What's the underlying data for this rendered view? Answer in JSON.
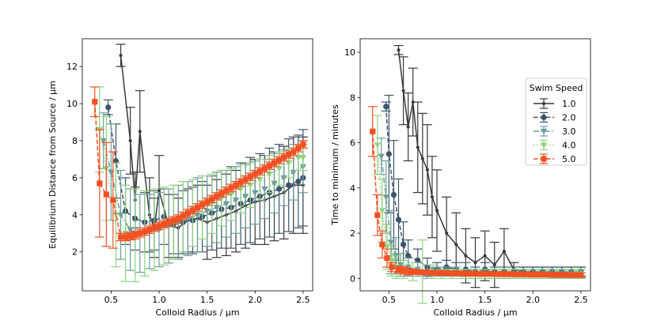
{
  "chart_data": [
    {
      "type": "line",
      "title": "",
      "xlabel": "Colloid Radius / μm",
      "ylabel": "Equilibrium Distance from Source / μm",
      "xlim": [
        0.2,
        2.6
      ],
      "ylim": [
        -0.1,
        13.5
      ],
      "xticks": [
        0.5,
        1.0,
        1.5,
        2.0,
        2.5
      ],
      "xtick_labels": [
        "0.5",
        "1.0",
        "1.5",
        "2.0",
        "2.5"
      ],
      "yticks": [
        2,
        4,
        6,
        8,
        10,
        12
      ],
      "ytick_labels": [
        "2",
        "4",
        "6",
        "8",
        "10",
        "12"
      ],
      "grid": false,
      "legend": false,
      "series": [
        {
          "name": "1.0",
          "color": "#3a3539",
          "marker": "point",
          "linestyle": "solid",
          "x": [
            0.6,
            0.7,
            0.75,
            0.8,
            0.9,
            0.95,
            1.0,
            1.1,
            1.2,
            1.3,
            1.4,
            1.5,
            1.6,
            1.7,
            1.8,
            1.9,
            2.0,
            2.1,
            2.2,
            2.3,
            2.4,
            2.5
          ],
          "y": [
            12.6,
            8.0,
            4.8,
            8.5,
            4.0,
            3.3,
            5.3,
            3.4,
            3.3,
            3.7,
            3.8,
            3.6,
            3.8,
            4.0,
            4.2,
            4.5,
            4.7,
            4.8,
            5.0,
            5.2,
            5.6,
            5.6
          ],
          "err": [
            0.6,
            1.8,
            1.5,
            2.2,
            2.0,
            1.6,
            1.9,
            1.7,
            1.6,
            1.7,
            1.8,
            2.0,
            2.1,
            2.2,
            2.2,
            2.3,
            2.3,
            2.4,
            2.4,
            2.5,
            2.6,
            2.6
          ]
        },
        {
          "name": "2.0",
          "color": "#3c556b",
          "marker": "circle",
          "linestyle": "dashed",
          "x": [
            0.47,
            0.55,
            0.65,
            0.75,
            0.85,
            0.95,
            1.05,
            1.15,
            1.25,
            1.35,
            1.45,
            1.55,
            1.65,
            1.75,
            1.85,
            1.95,
            2.05,
            2.15,
            2.25,
            2.35,
            2.45,
            2.5
          ],
          "y": [
            9.8,
            6.9,
            4.2,
            3.8,
            3.6,
            3.7,
            3.9,
            3.5,
            3.6,
            3.7,
            3.9,
            4.1,
            4.3,
            4.4,
            4.6,
            4.8,
            5.0,
            5.2,
            5.4,
            5.6,
            5.8,
            6.0
          ],
          "err": [
            0.4,
            2.0,
            1.8,
            1.7,
            1.6,
            1.6,
            1.5,
            1.6,
            1.7,
            1.8,
            1.9,
            2.0,
            2.1,
            2.2,
            2.2,
            2.3,
            2.3,
            2.4,
            2.4,
            2.5,
            2.5,
            2.6
          ]
        },
        {
          "name": "3.0",
          "color": "#6d9e9b",
          "marker": "triangle-down",
          "linestyle": "dashdot",
          "x": [
            0.42,
            0.5,
            0.6,
            0.7,
            0.8,
            0.9,
            1.0,
            1.1,
            1.2,
            1.3,
            1.4,
            1.5,
            1.6,
            1.7,
            1.8,
            1.9,
            2.0,
            2.1,
            2.2,
            2.3,
            2.4,
            2.5
          ],
          "y": [
            8.0,
            6.3,
            4.0,
            3.2,
            3.0,
            3.1,
            3.2,
            3.4,
            3.6,
            3.8,
            4.0,
            4.2,
            4.4,
            4.6,
            4.8,
            5.0,
            5.2,
            5.4,
            5.7,
            6.0,
            6.3,
            6.6
          ],
          "err": [
            1.5,
            2.6,
            2.4,
            2.2,
            2.1,
            2.0,
            2.0,
            2.0,
            2.0,
            2.0,
            2.0,
            1.9,
            1.9,
            1.8,
            1.8,
            1.7,
            1.7,
            1.6,
            1.6,
            1.5,
            1.5,
            1.4
          ]
        },
        {
          "name": "4.0",
          "color": "#90d47d",
          "marker": "triangle-down",
          "linestyle": "dotted",
          "x": [
            0.38,
            0.45,
            0.55,
            0.65,
            0.75,
            0.85,
            0.95,
            1.05,
            1.15,
            1.25,
            1.35,
            1.45,
            1.55,
            1.65,
            1.75,
            1.85,
            1.95,
            2.05,
            2.15,
            2.25,
            2.35,
            2.45,
            2.5
          ],
          "y": [
            8.6,
            6.5,
            4.0,
            3.0,
            2.9,
            3.0,
            3.2,
            3.4,
            3.6,
            3.9,
            4.1,
            4.4,
            4.6,
            4.9,
            5.1,
            5.4,
            5.6,
            5.9,
            6.2,
            6.5,
            6.8,
            7.1,
            7.1
          ],
          "err": [
            2.3,
            2.8,
            2.8,
            2.6,
            2.5,
            2.3,
            2.2,
            2.1,
            2.0,
            1.9,
            1.8,
            1.7,
            1.6,
            1.5,
            1.4,
            1.3,
            1.2,
            1.1,
            1.0,
            0.9,
            0.8,
            0.7,
            0.7
          ]
        },
        {
          "name": "5.0",
          "color": "#f05023",
          "marker": "square",
          "linestyle": "dashed",
          "x": [
            0.33,
            0.38,
            0.45,
            0.52,
            0.6,
            0.65,
            0.7,
            0.75,
            0.8,
            0.85,
            0.9,
            0.95,
            1.0,
            1.05,
            1.1,
            1.15,
            1.2,
            1.25,
            1.3,
            1.35,
            1.4,
            1.45,
            1.5,
            1.55,
            1.6,
            1.65,
            1.7,
            1.75,
            1.8,
            1.85,
            1.9,
            1.95,
            2.0,
            2.05,
            2.1,
            2.15,
            2.2,
            2.25,
            2.3,
            2.35,
            2.4,
            2.45,
            2.5
          ],
          "y": [
            10.1,
            5.7,
            5.1,
            4.8,
            2.8,
            2.8,
            2.85,
            2.9,
            3.0,
            3.1,
            3.2,
            3.3,
            3.4,
            3.5,
            3.6,
            3.7,
            3.8,
            3.95,
            4.1,
            4.25,
            4.4,
            4.55,
            4.7,
            4.85,
            5.0,
            5.15,
            5.3,
            5.45,
            5.6,
            5.75,
            5.9,
            6.05,
            6.2,
            6.35,
            6.5,
            6.65,
            6.8,
            6.95,
            7.1,
            7.25,
            7.4,
            7.6,
            7.8
          ],
          "err": [
            0.8,
            2.9,
            2.8,
            2.6,
            0.2,
            0.2,
            0.2,
            0.2,
            0.2,
            0.2,
            0.2,
            0.2,
            0.2,
            0.2,
            0.2,
            0.2,
            0.2,
            0.2,
            0.2,
            0.2,
            0.2,
            0.2,
            0.2,
            0.2,
            0.2,
            0.2,
            0.2,
            0.2,
            0.2,
            0.2,
            0.2,
            0.2,
            0.2,
            0.2,
            0.2,
            0.2,
            0.2,
            0.2,
            0.2,
            0.2,
            0.2,
            0.2,
            0.2
          ]
        }
      ]
    },
    {
      "type": "line",
      "title": "",
      "xlabel": "Colloid Radius / μm",
      "ylabel": "Time to minimum / minutes",
      "xlim": [
        0.2,
        2.6
      ],
      "ylim": [
        -0.55,
        10.6
      ],
      "xticks": [
        0.5,
        1.0,
        1.5,
        2.0,
        2.5
      ],
      "xtick_labels": [
        "0.5",
        "1.0",
        "1.5",
        "2.0",
        "2.5"
      ],
      "yticks": [
        0,
        2,
        4,
        6,
        8,
        10
      ],
      "ytick_labels": [
        "0",
        "2",
        "4",
        "6",
        "8",
        "10"
      ],
      "grid": false,
      "legend": true,
      "legend_title": "Swim Speed",
      "legend_loc": "center-right",
      "series": [
        {
          "name": "1.0",
          "color": "#3a3539",
          "marker": "point",
          "linestyle": "solid",
          "x": [
            0.6,
            0.65,
            0.7,
            0.75,
            0.8,
            0.85,
            0.9,
            0.95,
            1.0,
            1.1,
            1.2,
            1.3,
            1.4,
            1.5,
            1.6,
            1.7,
            1.8,
            1.9,
            2.0,
            2.1,
            2.2,
            2.3,
            2.4,
            2.5
          ],
          "y": [
            10.1,
            8.3,
            6.7,
            7.8,
            5.8,
            5.3,
            4.8,
            3.6,
            3.0,
            2.0,
            1.5,
            1.0,
            0.7,
            1.0,
            0.6,
            1.2,
            0.4,
            0.3,
            0.3,
            0.3,
            0.3,
            0.3,
            0.3,
            0.3
          ],
          "err": [
            0.2,
            1.5,
            1.5,
            1.5,
            2.0,
            2.0,
            2.0,
            1.8,
            1.8,
            1.6,
            1.4,
            1.2,
            1.1,
            1.1,
            1.0,
            1.0,
            0.3,
            0.2,
            0.2,
            0.2,
            0.2,
            0.2,
            0.2,
            0.2
          ]
        },
        {
          "name": "2.0",
          "color": "#3c556b",
          "marker": "circle",
          "linestyle": "dashed",
          "x": [
            0.47,
            0.5,
            0.55,
            0.6,
            0.65,
            0.7,
            0.8,
            0.9,
            1.0,
            1.1,
            1.2,
            1.3,
            1.4,
            1.5,
            1.6,
            1.7,
            1.8,
            1.9,
            2.0,
            2.1,
            2.2,
            2.3,
            2.4,
            2.5
          ],
          "y": [
            7.6,
            5.5,
            3.7,
            2.6,
            1.5,
            1.0,
            0.8,
            0.5,
            0.4,
            0.5,
            0.4,
            0.4,
            0.3,
            0.4,
            0.3,
            0.3,
            0.3,
            0.3,
            0.3,
            0.3,
            0.3,
            0.3,
            0.3,
            0.3
          ],
          "err": [
            0.2,
            2.6,
            2.4,
            1.8,
            1.0,
            0.7,
            0.5,
            0.4,
            0.3,
            0.3,
            0.3,
            0.3,
            0.2,
            0.3,
            0.2,
            0.2,
            0.2,
            0.2,
            0.2,
            0.2,
            0.2,
            0.2,
            0.2,
            0.2
          ]
        },
        {
          "name": "3.0",
          "color": "#6d9e9b",
          "marker": "triangle-down",
          "linestyle": "dashdot",
          "x": [
            0.42,
            0.47,
            0.52,
            0.57,
            0.62,
            0.7,
            0.8,
            0.9,
            1.0,
            1.1,
            1.2,
            1.3,
            1.4,
            1.5,
            1.6,
            1.7,
            1.8,
            1.9,
            2.0,
            2.1,
            2.2,
            2.3,
            2.4,
            2.5
          ],
          "y": [
            5.4,
            3.6,
            1.6,
            1.0,
            0.6,
            0.5,
            0.4,
            0.3,
            0.3,
            0.3,
            0.3,
            0.2,
            0.2,
            0.2,
            0.2,
            0.2,
            0.2,
            0.2,
            0.2,
            0.2,
            0.2,
            0.2,
            0.2,
            0.2
          ],
          "err": [
            0.8,
            1.6,
            1.4,
            0.8,
            0.5,
            0.4,
            0.3,
            0.3,
            0.2,
            0.2,
            0.2,
            0.2,
            0.2,
            0.2,
            0.2,
            0.2,
            0.2,
            0.2,
            0.2,
            0.2,
            0.2,
            0.2,
            0.2,
            0.2
          ]
        },
        {
          "name": "4.0",
          "color": "#90d47d",
          "marker": "triangle-down",
          "linestyle": "dotted",
          "x": [
            0.38,
            0.43,
            0.48,
            0.53,
            0.58,
            0.65,
            0.75,
            0.85,
            0.95,
            1.05,
            1.15,
            1.25,
            1.35,
            1.45,
            1.55,
            1.65,
            1.75,
            1.85,
            1.95,
            2.05,
            2.15,
            2.25,
            2.35,
            2.45,
            2.5
          ],
          "y": [
            5.9,
            3.0,
            1.4,
            0.8,
            0.5,
            0.4,
            0.3,
            0.3,
            0.3,
            0.2,
            0.2,
            0.2,
            0.2,
            0.2,
            0.2,
            0.2,
            0.2,
            0.2,
            0.2,
            0.2,
            0.2,
            0.2,
            0.2,
            0.2,
            0.2
          ],
          "err": [
            1.3,
            1.4,
            1.0,
            0.7,
            0.5,
            0.4,
            0.4,
            1.4,
            0.3,
            0.2,
            0.2,
            0.2,
            0.2,
            0.2,
            0.2,
            0.2,
            0.2,
            0.2,
            0.2,
            0.2,
            0.2,
            0.2,
            0.2,
            0.2,
            0.2
          ]
        },
        {
          "name": "5.0",
          "color": "#f05023",
          "marker": "square",
          "linestyle": "dashed",
          "x": [
            0.33,
            0.38,
            0.43,
            0.48,
            0.53,
            0.6,
            0.65,
            0.7,
            0.75,
            0.8,
            0.85,
            0.9,
            0.95,
            1.0,
            1.05,
            1.1,
            1.15,
            1.2,
            1.25,
            1.3,
            1.35,
            1.4,
            1.45,
            1.5,
            1.55,
            1.6,
            1.65,
            1.7,
            1.75,
            1.8,
            1.85,
            1.9,
            1.95,
            2.0,
            2.05,
            2.1,
            2.15,
            2.2,
            2.25,
            2.3,
            2.35,
            2.4,
            2.45,
            2.5
          ],
          "y": [
            6.5,
            2.8,
            1.5,
            0.9,
            0.5,
            0.4,
            0.35,
            0.3,
            0.3,
            0.28,
            0.27,
            0.26,
            0.25,
            0.25,
            0.24,
            0.24,
            0.23,
            0.23,
            0.22,
            0.22,
            0.21,
            0.21,
            0.2,
            0.2,
            0.2,
            0.2,
            0.19,
            0.19,
            0.19,
            0.18,
            0.18,
            0.18,
            0.18,
            0.17,
            0.17,
            0.17,
            0.17,
            0.16,
            0.16,
            0.16,
            0.16,
            0.15,
            0.15,
            0.15
          ],
          "err": [
            1.1,
            0.9,
            0.6,
            0.4,
            0.2,
            0.15,
            0.15,
            0.15,
            0.1,
            0.1,
            0.1,
            0.1,
            0.1,
            0.1,
            0.1,
            0.1,
            0.1,
            0.1,
            0.1,
            0.1,
            0.1,
            0.1,
            0.1,
            0.1,
            0.1,
            0.1,
            0.1,
            0.1,
            0.1,
            0.1,
            0.1,
            0.1,
            0.1,
            0.1,
            0.1,
            0.1,
            0.1,
            0.1,
            0.1,
            0.1,
            0.1,
            0.1,
            0.1,
            0.1
          ]
        }
      ]
    }
  ]
}
